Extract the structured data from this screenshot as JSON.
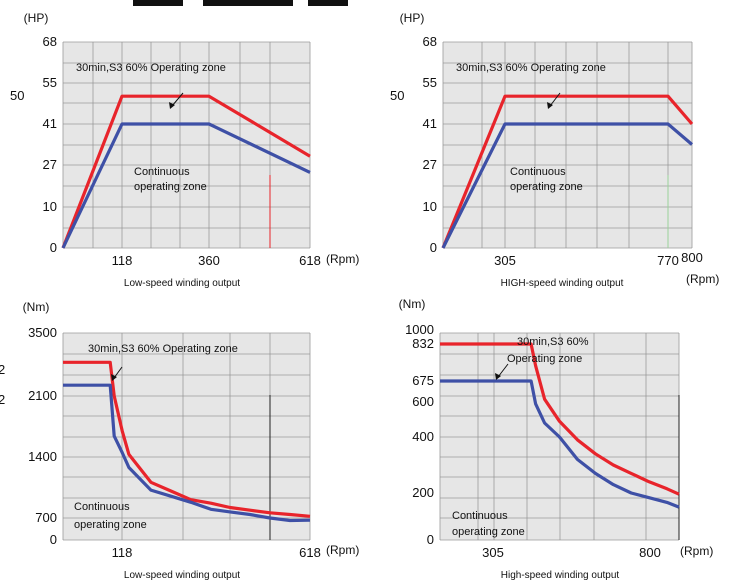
{
  "chart_data": [
    {
      "type": "line",
      "unit_label": "(HP)",
      "x_unit": "(Rpm)",
      "caption": "Low-speed winding output",
      "xlim": [
        0,
        618
      ],
      "ylim": [
        0,
        68
      ],
      "y_ticks": [
        0,
        10,
        27,
        41,
        55,
        68
      ],
      "y_ticks_extra": [
        "50"
      ],
      "x_ticks": [
        118,
        360,
        618
      ],
      "annotations": [
        "30min,S3 60% Operating zone",
        "Continuous",
        "operating zone"
      ],
      "series": [
        {
          "color": "#e8242b",
          "x": [
            0,
            118,
            360,
            618
          ],
          "y": [
            0,
            50.5,
            50.5,
            30
          ]
        },
        {
          "color": "#3e50a6",
          "x": [
            0,
            118,
            360,
            618
          ],
          "y": [
            0,
            41,
            41,
            24
          ]
        }
      ]
    },
    {
      "type": "line",
      "unit_label": "(HP)",
      "x_unit": "(Rpm)",
      "caption": "HIGH-speed winding output",
      "xlim": [
        0,
        800
      ],
      "ylim": [
        0,
        68
      ],
      "y_ticks": [
        0,
        10,
        27,
        41,
        55,
        68
      ],
      "y_ticks_extra": [
        "50"
      ],
      "x_ticks": [
        305,
        770,
        800
      ],
      "annotations": [
        "30min,S3 60% Operating zone",
        "Continuous",
        "operating zone"
      ],
      "series": [
        {
          "color": "#e8242b",
          "x": [
            0,
            305,
            770,
            800
          ],
          "y": [
            0,
            50.5,
            50.5,
            41
          ]
        },
        {
          "color": "#3e50a6",
          "x": [
            0,
            305,
            770,
            800
          ],
          "y": [
            0,
            41,
            41,
            34
          ]
        }
      ]
    },
    {
      "type": "line",
      "unit_label": "(Nm)",
      "x_unit": "(Rpm)",
      "caption": "Low-speed winding output",
      "xlim": [
        0,
        618
      ],
      "ylim": [
        0,
        3500
      ],
      "y_ticks": [
        0,
        700,
        1400,
        2100,
        3500
      ],
      "y_ticks_extra": [
        "2",
        "2"
      ],
      "x_ticks": [
        118,
        618
      ],
      "annotations": [
        "30min,S3 60% Operating zone",
        "Continuous",
        "operating zone"
      ],
      "series": [
        {
          "color": "#e8242b",
          "x": [
            0,
            118,
            128,
            148,
            165,
            220,
            270,
            320,
            370,
            418,
            468,
            518,
            568,
            618
          ],
          "y": [
            2850,
            2850,
            2100,
            1700,
            1430,
            1110,
            1010,
            910,
            870,
            820,
            790,
            760,
            740,
            720
          ]
        },
        {
          "color": "#3e50a6",
          "x": [
            0,
            118,
            128,
            148,
            165,
            220,
            270,
            320,
            370,
            418,
            468,
            518,
            568,
            618
          ],
          "y": [
            2340,
            2340,
            1640,
            1450,
            1280,
            1020,
            950,
            880,
            800,
            770,
            740,
            700,
            620,
            630
          ]
        }
      ]
    },
    {
      "type": "line",
      "unit_label": "(Nm)",
      "x_unit": "(Rpm)",
      "caption": "High-speed winding output",
      "xlim": [
        0,
        800
      ],
      "ylim": [
        0,
        1000
      ],
      "y_ticks": [
        0,
        200,
        400,
        600,
        675,
        832,
        1000
      ],
      "x_ticks": [
        305,
        800
      ],
      "annotations": [
        "30min,S3 60%",
        "Operating zone",
        "Continuous",
        "operating zone"
      ],
      "series": [
        {
          "color": "#e8242b",
          "x": [
            0,
            280,
            305,
            320,
            350,
            400,
            460,
            520,
            580,
            640,
            700,
            760,
            800
          ],
          "y": [
            832,
            832,
            832,
            740,
            610,
            490,
            390,
            340,
            300,
            270,
            240,
            215,
            195
          ]
        },
        {
          "color": "#3e50a6",
          "x": [
            0,
            280,
            305,
            320,
            350,
            400,
            460,
            520,
            580,
            640,
            700,
            760,
            800
          ],
          "y": [
            675,
            675,
            675,
            590,
            480,
            400,
            320,
            270,
            230,
            200,
            180,
            160,
            140
          ]
        }
      ]
    }
  ]
}
